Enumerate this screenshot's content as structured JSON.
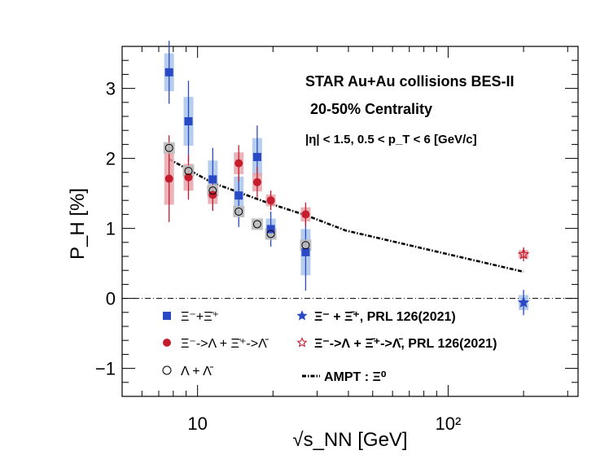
{
  "chart_data": {
    "type": "scatter",
    "title": "",
    "xlabel": "√s_NN [GeV]",
    "ylabel": "P_H [%]",
    "xscale": "log",
    "xlim": [
      5,
      330
    ],
    "ylim": [
      -1.4,
      3.6
    ],
    "x_tick_labels": [
      "10",
      "10²"
    ],
    "y_tick_labels": [
      "−1",
      "0",
      "1",
      "2",
      "3"
    ],
    "annotations": [
      "STAR  Au+Au collisions BES-II",
      "20-50% Centrality",
      "|η| < 1.5, 0.5 < p_T < 6 [GeV/c]"
    ],
    "legend_position": "bottom-left",
    "zero_line": true,
    "series": [
      {
        "name": "Ξ⁻+Ξ̄⁺",
        "marker": "square",
        "color": "#2a49c4",
        "box_color": "#a9c4ea",
        "x": [
          7.7,
          9.2,
          11.5,
          14.6,
          17.3,
          19.6,
          27.0
        ],
        "y": [
          3.23,
          2.53,
          1.7,
          1.47,
          2.02,
          0.99,
          0.66
        ],
        "err": [
          0.45,
          0.58,
          0.45,
          0.45,
          0.45,
          0.25,
          0.55
        ]
      },
      {
        "name": "Ξ⁻->Λ + Ξ̄⁺->Λ̄",
        "marker": "circle",
        "color": "#c41e2e",
        "box_color": "#e8a4aa",
        "x": [
          7.7,
          9.2,
          11.5,
          14.6,
          17.3,
          19.6,
          27.0
        ],
        "y": [
          1.71,
          1.73,
          1.48,
          1.93,
          1.66,
          1.4,
          1.2
        ],
        "err": [
          0.62,
          0.32,
          0.22,
          0.26,
          0.22,
          0.14,
          0.17
        ]
      },
      {
        "name": "Λ + Λ̄",
        "marker": "open-circle",
        "color": "#000000",
        "box_color": "#bbbbbb",
        "x": [
          7.7,
          9.2,
          11.5,
          14.6,
          17.3,
          19.6,
          27.0
        ],
        "y": [
          2.15,
          1.82,
          1.54,
          1.24,
          1.06,
          0.92,
          0.76
        ],
        "err": [
          0.05,
          0.05,
          0.04,
          0.04,
          0.03,
          0.03,
          0.04
        ]
      },
      {
        "name": "Ξ⁻ + Ξ̄⁺, PRL 126(2021)",
        "marker": "star",
        "color": "#2a49c4",
        "box_color": "#a9c4ea",
        "x": [
          200
        ],
        "y": [
          -0.06
        ],
        "err": [
          0.18
        ]
      },
      {
        "name": "Ξ⁻->Λ + Ξ̄⁺->Λ̄, PRL 126(2021)",
        "marker": "open-star",
        "color": "#c41e2e",
        "box_color": "#e8a4aa",
        "x": [
          200
        ],
        "y": [
          0.63
        ],
        "err": [
          0.1
        ]
      },
      {
        "name": "AMPT : Ξ⁰",
        "marker": "line",
        "color": "#000000",
        "x": [
          7.7,
          11.5,
          19.6,
          27.0,
          39.0,
          200.0
        ],
        "y": [
          1.99,
          1.65,
          1.35,
          1.19,
          0.97,
          0.38
        ]
      }
    ]
  }
}
